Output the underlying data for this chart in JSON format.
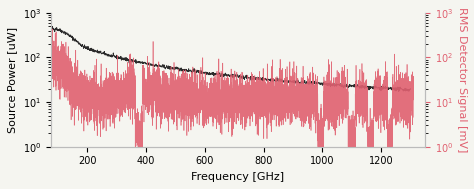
{
  "xlim": [
    75,
    1350
  ],
  "ylim_left": [
    1.0,
    1000.0
  ],
  "ylim_right": [
    1.0,
    1000.0
  ],
  "xlabel": "Frequency [GHz]",
  "ylabel_left": "Source Power [uW]",
  "ylabel_right": "RMS Detector Signal [mV]",
  "xticks": [
    200,
    400,
    600,
    800,
    1000,
    1200
  ],
  "black_color": "#2b2b2b",
  "red_color": "#e06070",
  "background_color": "#f5f5f0",
  "fontsize": 8
}
